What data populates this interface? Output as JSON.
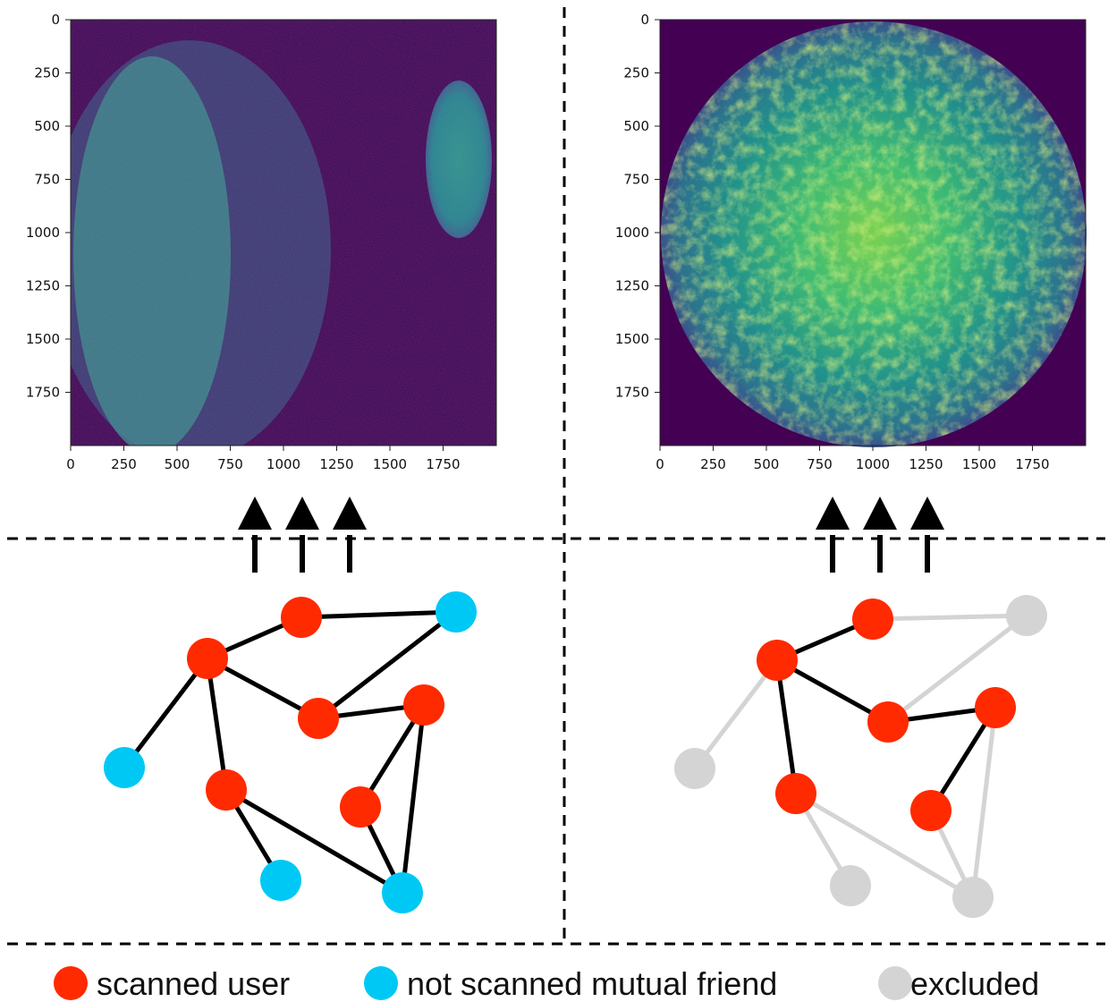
{
  "plots": [
    {
      "id": "left",
      "y_ticks": [
        "0",
        "250",
        "500",
        "750",
        "1000",
        "1250",
        "1500",
        "1750"
      ],
      "x_ticks": [
        "0",
        "250",
        "500",
        "750",
        "1000",
        "1250",
        "1500",
        "1750"
      ],
      "background_color": "#440154"
    },
    {
      "id": "right",
      "y_ticks": [
        "0",
        "250",
        "500",
        "750",
        "1000",
        "1250",
        "1500",
        "1750"
      ],
      "x_ticks": [
        "0",
        "250",
        "500",
        "750",
        "1000",
        "1250",
        "1500",
        "1750"
      ],
      "background_color": "#440154"
    }
  ],
  "legend": {
    "scanned": {
      "label": "scanned user",
      "color": "#ff2a00"
    },
    "not_scanned": {
      "label": "not scanned mutual friend",
      "color": "#00c8f5"
    },
    "excluded": {
      "label": "excluded",
      "color": "#d4d4d4"
    }
  },
  "colors": {
    "edge_active": "#000000",
    "edge_excluded": "#d4d4d4",
    "divider": "#000000",
    "arrow": "#000000"
  },
  "networks": {
    "left": {
      "nodes": [
        {
          "id": "a",
          "status": "scanned"
        },
        {
          "id": "b",
          "status": "not_scanned"
        },
        {
          "id": "c",
          "status": "scanned"
        },
        {
          "id": "d",
          "status": "scanned"
        },
        {
          "id": "e",
          "status": "scanned"
        },
        {
          "id": "f",
          "status": "not_scanned"
        },
        {
          "id": "g",
          "status": "scanned"
        },
        {
          "id": "h",
          "status": "scanned"
        },
        {
          "id": "i",
          "status": "not_scanned"
        },
        {
          "id": "j",
          "status": "not_scanned"
        }
      ]
    },
    "right": {
      "nodes": [
        {
          "id": "a",
          "status": "scanned"
        },
        {
          "id": "b",
          "status": "excluded"
        },
        {
          "id": "c",
          "status": "scanned"
        },
        {
          "id": "d",
          "status": "scanned"
        },
        {
          "id": "e",
          "status": "scanned"
        },
        {
          "id": "f",
          "status": "excluded"
        },
        {
          "id": "g",
          "status": "scanned"
        },
        {
          "id": "h",
          "status": "scanned"
        },
        {
          "id": "i",
          "status": "excluded"
        },
        {
          "id": "j",
          "status": "excluded"
        }
      ]
    }
  }
}
